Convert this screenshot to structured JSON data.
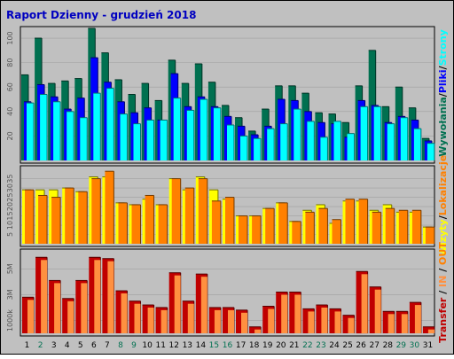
{
  "title": "Raport Dzienny -  grudzień 2018",
  "colors": {
    "background": "#c0c0c0",
    "panel": "#c0c0c0",
    "title": "#0000c0",
    "hits": "#007050",
    "files": "#0000ff",
    "pages": "#00ffff",
    "visits": "#ffff00",
    "sites": "#ff8000",
    "volume": "#c00000",
    "volume_in": "#ff9040",
    "weekend_label": "#007050",
    "day_label": "#000000"
  },
  "right_legend": {
    "top": [
      "Wywołania",
      "/",
      "Pliki",
      "/",
      "Strony"
    ],
    "middle": [
      "Wizyty",
      "/",
      "Lokalizacje"
    ],
    "bottom": [
      "Transfer",
      " / ",
      "IN",
      " / ",
      "OUT"
    ]
  },
  "chart_data": [
    {
      "type": "bar",
      "panel": "requests",
      "categories": [
        "1",
        "2",
        "3",
        "4",
        "5",
        "6",
        "7",
        "8",
        "9",
        "10",
        "11",
        "12",
        "13",
        "14",
        "15",
        "16",
        "17",
        "18",
        "19",
        "20",
        "21",
        "22",
        "23",
        "24",
        "25",
        "26",
        "27",
        "28",
        "29",
        "30",
        "31"
      ],
      "weekend_days": [
        "2",
        "8",
        "9",
        "15",
        "16",
        "22",
        "23",
        "29",
        "30"
      ],
      "y_ticks": [
        "20",
        "40",
        "60",
        "80",
        "100"
      ],
      "ylim": [
        0,
        108
      ],
      "series": [
        {
          "name": "Wywołania",
          "values": [
            70,
            100,
            63,
            65,
            67,
            108,
            88,
            66,
            54,
            63,
            49,
            82,
            63,
            79,
            64,
            45,
            35,
            24,
            42,
            61,
            61,
            55,
            39,
            38,
            31,
            61,
            90,
            44,
            60,
            43,
            18
          ]
        },
        {
          "name": "Pliki",
          "values": [
            48,
            62,
            52,
            42,
            51,
            84,
            64,
            48,
            39,
            43,
            33,
            71,
            44,
            52,
            44,
            36,
            28,
            21,
            28,
            50,
            49,
            40,
            31,
            30,
            19,
            49,
            45,
            31,
            36,
            33,
            16
          ]
        },
        {
          "name": "Strony",
          "values": [
            47,
            54,
            48,
            40,
            35,
            55,
            59,
            38,
            30,
            33,
            33,
            51,
            41,
            50,
            43,
            29,
            20,
            18,
            26,
            30,
            42,
            32,
            19,
            32,
            22,
            44,
            44,
            30,
            35,
            26,
            14
          ]
        }
      ]
    },
    {
      "type": "bar",
      "panel": "visits",
      "categories": [
        "1",
        "2",
        "3",
        "4",
        "5",
        "6",
        "7",
        "8",
        "9",
        "10",
        "11",
        "12",
        "13",
        "14",
        "15",
        "16",
        "17",
        "18",
        "19",
        "20",
        "21",
        "22",
        "23",
        "24",
        "25",
        "26",
        "27",
        "28",
        "29",
        "30",
        "31"
      ],
      "y_ticks": [
        "5",
        "10",
        "15",
        "20",
        "25",
        "30",
        "35"
      ],
      "ylim": [
        0,
        41
      ],
      "series": [
        {
          "name": "Wizyty",
          "values": [
            29,
            29,
            29,
            30,
            28,
            36,
            36,
            22,
            21,
            24,
            21,
            35,
            29,
            36,
            29,
            24,
            15,
            15,
            19,
            22,
            12,
            18,
            21,
            11,
            23,
            23,
            18,
            21,
            17,
            17,
            9
          ]
        },
        {
          "name": "Lokalizacje",
          "values": [
            29,
            26,
            25,
            30,
            28,
            35,
            39,
            22,
            21,
            26,
            21,
            35,
            30,
            35,
            23,
            25,
            15,
            15,
            19,
            22,
            12,
            17,
            19,
            13,
            24,
            24,
            17,
            19,
            18,
            18,
            9
          ]
        }
      ]
    },
    {
      "type": "bar",
      "panel": "transfer",
      "categories": [
        "1",
        "2",
        "3",
        "4",
        "5",
        "6",
        "7",
        "8",
        "9",
        "10",
        "11",
        "12",
        "13",
        "14",
        "15",
        "16",
        "17",
        "18",
        "19",
        "20",
        "21",
        "22",
        "23",
        "24",
        "25",
        "26",
        "27",
        "28",
        "29",
        "30",
        "31"
      ],
      "y_ticks": [
        "1000k",
        "3M",
        "5M"
      ],
      "ylim": [
        0,
        6.4
      ],
      "series": [
        {
          "name": "Transfer",
          "values": [
            2.8,
            5.9,
            4.1,
            2.7,
            4.1,
            5.9,
            5.8,
            3.3,
            2.5,
            2.2,
            2.0,
            4.7,
            2.5,
            4.6,
            2.0,
            2.0,
            1.8,
            0.5,
            2.1,
            3.2,
            3.2,
            1.9,
            2.2,
            1.9,
            1.4,
            4.8,
            3.6,
            1.7,
            1.7,
            2.4,
            0.5
          ]
        }
      ]
    }
  ]
}
